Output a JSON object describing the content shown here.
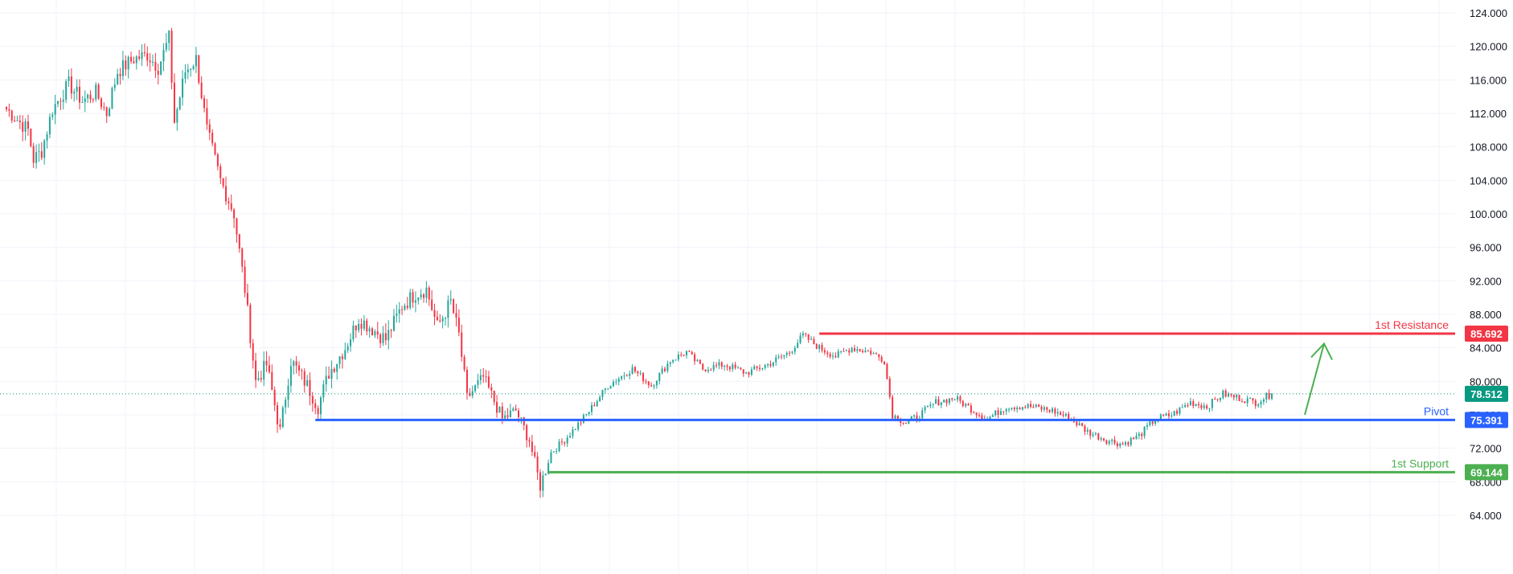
{
  "chart_data": {
    "type": "candlestick",
    "y_axis": {
      "ylim": [
        62.0,
        126.0
      ],
      "tick_labels": [
        "124.000",
        "120.000",
        "116.000",
        "112.000",
        "108.000",
        "104.000",
        "100.000",
        "96.000",
        "92.000",
        "88.000",
        "84.000",
        "80.000",
        "76.000",
        "72.000",
        "68.000",
        "64.000"
      ],
      "tick_values": [
        124,
        120,
        116,
        112,
        108,
        104,
        100,
        96,
        92,
        88,
        84,
        80,
        76,
        72,
        68,
        64
      ]
    },
    "grid": true,
    "colors": {
      "up": "#26a69a",
      "down": "#f23645",
      "resistance": "#f23645",
      "pivot": "#2962ff",
      "support": "#4caf50",
      "current": "#089981",
      "arrow": "#4caf50",
      "grid": "#f0f3fa"
    },
    "current_price": {
      "value": 78.512,
      "label": "78.512"
    },
    "levels": [
      {
        "name": "1st Resistance",
        "value": 85.692,
        "badge": "85.692",
        "start_index": 300
      },
      {
        "name": "Pivot",
        "value": 75.391,
        "badge": "75.391",
        "start_index": 114
      },
      {
        "name": "1st Support",
        "value": 69.144,
        "badge": "69.144",
        "start_index": 200
      }
    ],
    "annotations": [
      {
        "type": "arrow",
        "direction": "up",
        "from_value": 76.0,
        "to_value": 84.5
      }
    ],
    "candle_count": 468,
    "price_path": [
      {
        "i": 0,
        "v": 112.5
      },
      {
        "i": 8,
        "v": 110.0
      },
      {
        "i": 10,
        "v": 106.5
      },
      {
        "i": 13,
        "v": 107.5
      },
      {
        "i": 17,
        "v": 112.5
      },
      {
        "i": 23,
        "v": 115.5
      },
      {
        "i": 28,
        "v": 113.5
      },
      {
        "i": 33,
        "v": 114.5
      },
      {
        "i": 37,
        "v": 112.0
      },
      {
        "i": 41,
        "v": 117.0
      },
      {
        "i": 47,
        "v": 118.5
      },
      {
        "i": 52,
        "v": 119.0
      },
      {
        "i": 56,
        "v": 117.5
      },
      {
        "i": 60,
        "v": 121.0
      },
      {
        "i": 62,
        "v": 111.0
      },
      {
        "i": 66,
        "v": 117.0
      },
      {
        "i": 70,
        "v": 118.5
      },
      {
        "i": 74,
        "v": 110.0
      },
      {
        "i": 79,
        "v": 104.0
      },
      {
        "i": 84,
        "v": 100.0
      },
      {
        "i": 88,
        "v": 91.0
      },
      {
        "i": 92,
        "v": 80.0
      },
      {
        "i": 96,
        "v": 82.0
      },
      {
        "i": 101,
        "v": 74.0
      },
      {
        "i": 105,
        "v": 82.5
      },
      {
        "i": 111,
        "v": 79.5
      },
      {
        "i": 115,
        "v": 77.0
      },
      {
        "i": 119,
        "v": 81.0
      },
      {
        "i": 125,
        "v": 84.0
      },
      {
        "i": 130,
        "v": 87.5
      },
      {
        "i": 136,
        "v": 86.0
      },
      {
        "i": 140,
        "v": 85.0
      },
      {
        "i": 146,
        "v": 89.0
      },
      {
        "i": 151,
        "v": 90.5
      },
      {
        "i": 155,
        "v": 91.0
      },
      {
        "i": 159,
        "v": 86.5
      },
      {
        "i": 164,
        "v": 89.5
      },
      {
        "i": 167,
        "v": 85.5
      },
      {
        "i": 170,
        "v": 78.0
      },
      {
        "i": 176,
        "v": 80.5
      },
      {
        "i": 183,
        "v": 75.5
      },
      {
        "i": 188,
        "v": 76.5
      },
      {
        "i": 193,
        "v": 73.0
      },
      {
        "i": 197,
        "v": 67.5
      },
      {
        "i": 201,
        "v": 71.5
      },
      {
        "i": 206,
        "v": 73.0
      },
      {
        "i": 214,
        "v": 76.0
      },
      {
        "i": 222,
        "v": 79.5
      },
      {
        "i": 231,
        "v": 81.5
      },
      {
        "i": 238,
        "v": 79.5
      },
      {
        "i": 245,
        "v": 82.5
      },
      {
        "i": 251,
        "v": 83.5
      },
      {
        "i": 257,
        "v": 81.5
      },
      {
        "i": 265,
        "v": 82.0
      },
      {
        "i": 273,
        "v": 81.0
      },
      {
        "i": 281,
        "v": 82.0
      },
      {
        "i": 289,
        "v": 83.5
      },
      {
        "i": 294,
        "v": 85.5
      },
      {
        "i": 300,
        "v": 84.0
      },
      {
        "i": 306,
        "v": 83.0
      },
      {
        "i": 312,
        "v": 84.0
      },
      {
        "i": 319,
        "v": 83.5
      },
      {
        "i": 324,
        "v": 82.5
      },
      {
        "i": 327,
        "v": 76.0
      },
      {
        "i": 332,
        "v": 75.0
      },
      {
        "i": 337,
        "v": 76.0
      },
      {
        "i": 343,
        "v": 77.5
      },
      {
        "i": 350,
        "v": 78.0
      },
      {
        "i": 357,
        "v": 76.5
      },
      {
        "i": 362,
        "v": 75.5
      },
      {
        "i": 369,
        "v": 77.0
      },
      {
        "i": 378,
        "v": 77.0
      },
      {
        "i": 386,
        "v": 76.5
      },
      {
        "i": 393,
        "v": 75.5
      },
      {
        "i": 399,
        "v": 74.0
      },
      {
        "i": 406,
        "v": 73.0
      },
      {
        "i": 412,
        "v": 72.5
      },
      {
        "i": 418,
        "v": 73.5
      },
      {
        "i": 424,
        "v": 75.5
      },
      {
        "i": 430,
        "v": 76.0
      },
      {
        "i": 437,
        "v": 77.5
      },
      {
        "i": 443,
        "v": 77.0
      },
      {
        "i": 449,
        "v": 78.5
      },
      {
        "i": 455,
        "v": 78.0
      },
      {
        "i": 461,
        "v": 77.5
      },
      {
        "i": 467,
        "v": 78.512
      }
    ]
  }
}
